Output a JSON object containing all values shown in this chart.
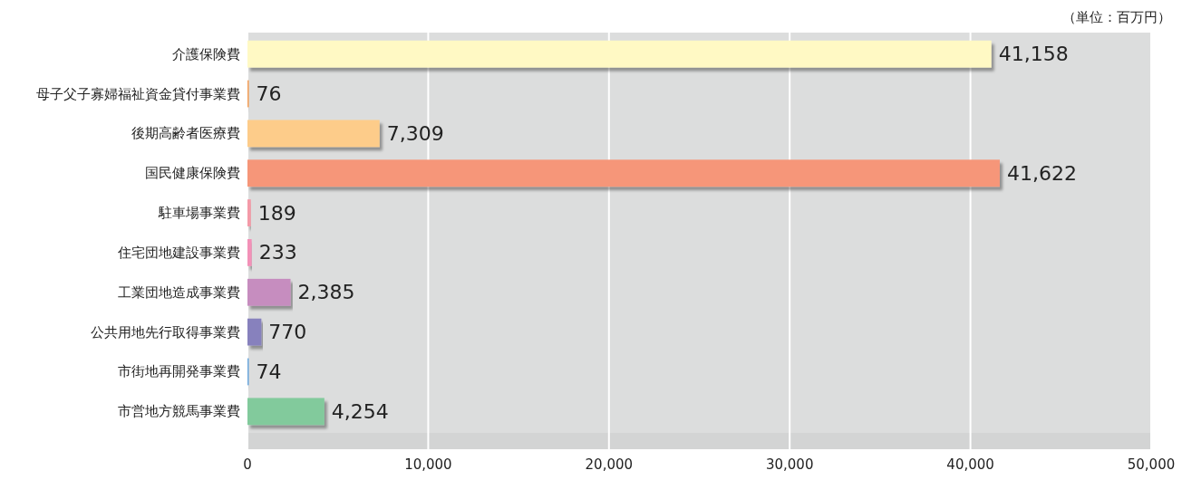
{
  "chart_data": {
    "type": "bar",
    "orientation": "horizontal",
    "annotations": [
      "（単位：百万円）"
    ],
    "categories": [
      "介護保険費",
      "母子父子寡婦福祉資金貸付事業費",
      "後期高齢者医療費",
      "国民健康保険費",
      "駐車場事業費",
      "住宅団地建設事業費",
      "工業団地造成事業費",
      "公共用地先行取得事業費",
      "市街地再開発事業費",
      "市営地方競馬事業費"
    ],
    "values": [
      41158,
      76,
      7309,
      41622,
      189,
      233,
      2385,
      770,
      74,
      4254
    ],
    "colors": [
      "#fff9c4",
      "#f6a05a",
      "#fdcc8a",
      "#f69679",
      "#f49aa8",
      "#f391b8",
      "#c68dbf",
      "#8781bd",
      "#6ca8de",
      "#82ca9c"
    ],
    "value_labels": [
      "41,158",
      "76",
      "7,309",
      "41,622",
      "189",
      "233",
      "2,385",
      "770",
      "74",
      "4,254"
    ],
    "xlim": [
      0,
      50000
    ],
    "xticks": [
      0,
      {
        "value": 10000,
        "label": "10,000"
      },
      {
        "value": 20000,
        "label": "20,000"
      },
      {
        "value": 30000,
        "label": "30,000"
      },
      {
        "value": 40000,
        "label": "40,000"
      },
      {
        "value": 50000,
        "label": "50,000"
      }
    ],
    "grid": "x"
  }
}
